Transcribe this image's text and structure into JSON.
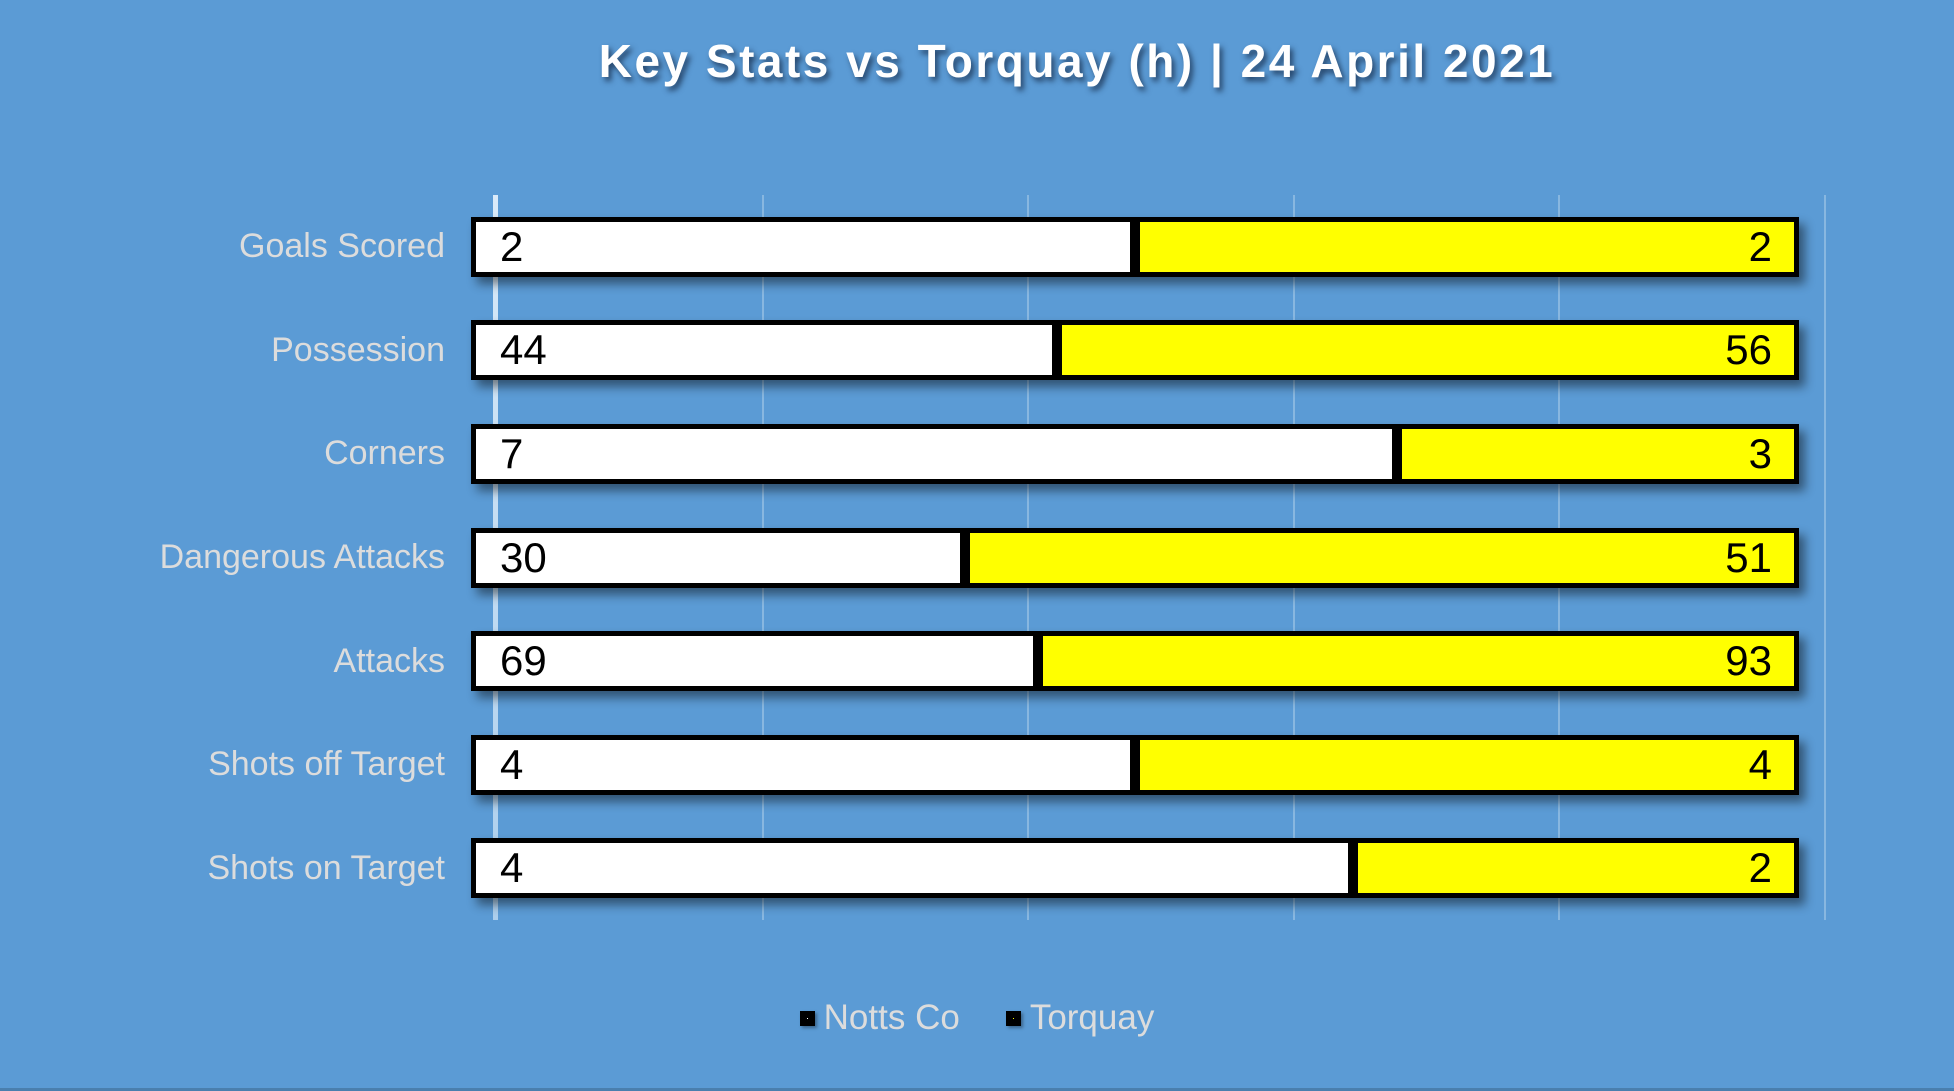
{
  "title": "Key Stats vs Torquay (h) | 24 April 2021",
  "colors": {
    "background": "#5B9BD5",
    "home_fill": "#FFFFFF",
    "away_fill": "#FFFF00",
    "bar_border": "#000000",
    "label_text": "#DCDCDC",
    "value_text": "#000000",
    "title_text": "#FFFFFF"
  },
  "legend": {
    "position": "bottom",
    "items": [
      {
        "label": "Notts Co",
        "color": "#FFFFFF"
      },
      {
        "label": "Torquay",
        "color": "#FFFF00"
      }
    ]
  },
  "chart_data": {
    "type": "bar",
    "subtype": "100-percent-stacked-horizontal",
    "title": "Key Stats vs Torquay (h) | 24 April 2021",
    "categories": [
      "Goals Scored",
      "Possession",
      "Corners",
      "Dangerous Attacks",
      "Attacks",
      "Shots off Target",
      "Shots on Target"
    ],
    "series": [
      {
        "name": "Notts Co",
        "color": "#FFFFFF",
        "values": [
          2,
          44,
          7,
          30,
          69,
          4,
          4
        ]
      },
      {
        "name": "Torquay",
        "color": "#FFFF00",
        "values": [
          2,
          56,
          3,
          51,
          93,
          4,
          2
        ]
      }
    ],
    "value_labels": "inside-ends",
    "grid": true,
    "gridline_interval_pct": 20,
    "xlim_pct": [
      0,
      100
    ],
    "legend_position": "bottom"
  }
}
